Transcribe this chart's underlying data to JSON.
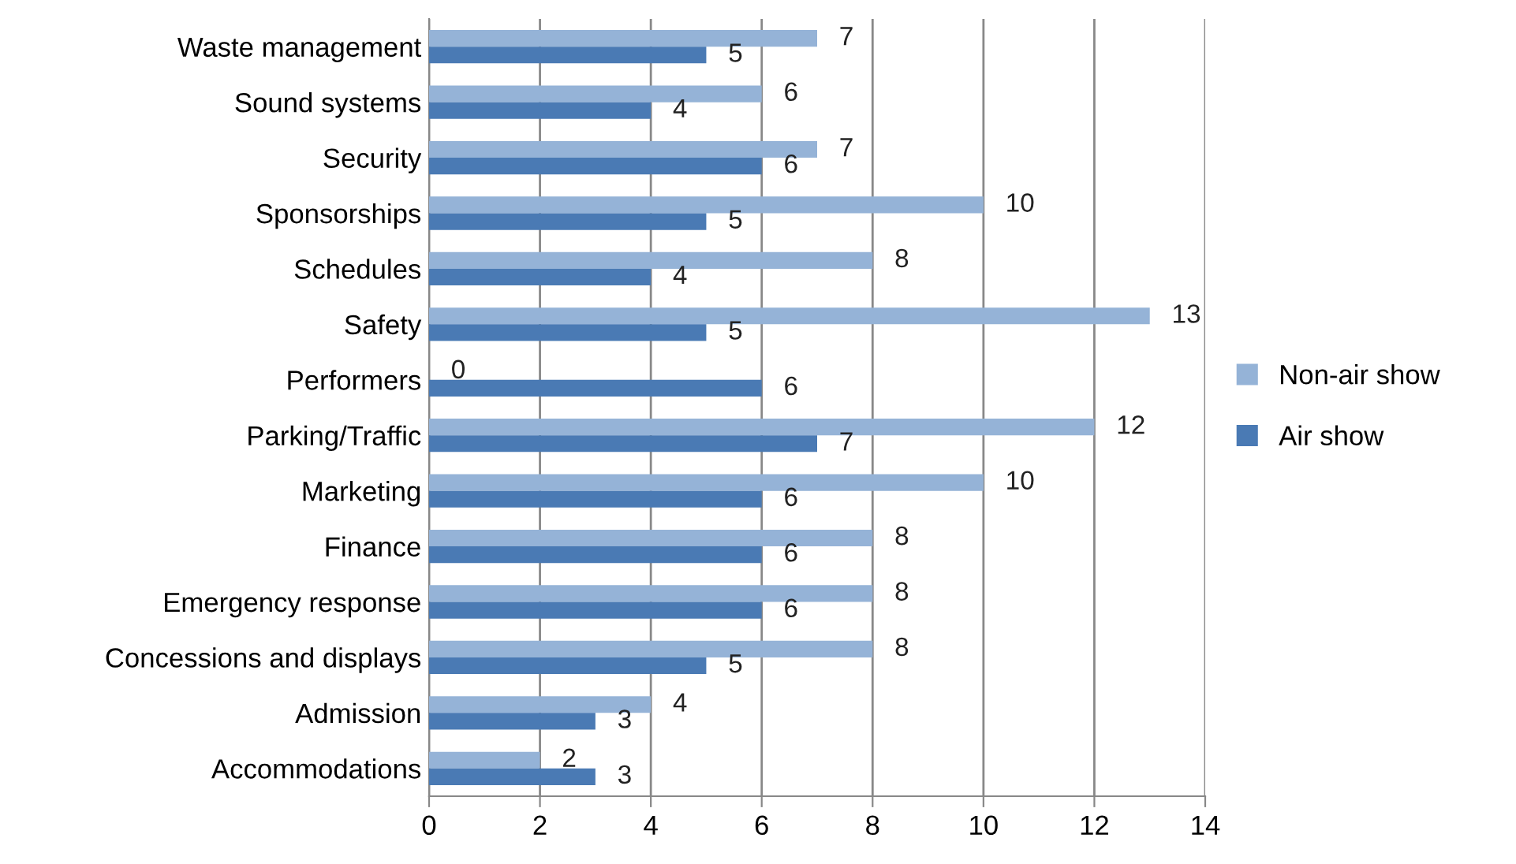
{
  "chart_data": {
    "type": "bar",
    "orientation": "horizontal",
    "categories": [
      "Waste management",
      "Sound systems",
      "Security",
      "Sponsorships",
      "Schedules",
      "Safety",
      "Performers",
      "Parking/Traffic",
      "Marketing",
      "Finance",
      "Emergency response",
      "Concessions and displays",
      "Admission",
      "Accommodations"
    ],
    "series": [
      {
        "name": "Non-air show",
        "color": "#95b3d7",
        "values": [
          7,
          6,
          7,
          10,
          8,
          13,
          0,
          12,
          10,
          8,
          8,
          8,
          4,
          2
        ]
      },
      {
        "name": "Air show",
        "color": "#4a7ab4",
        "values": [
          5,
          4,
          6,
          5,
          4,
          5,
          6,
          7,
          6,
          6,
          6,
          5,
          3,
          3
        ]
      }
    ],
    "xlim": [
      0,
      14
    ],
    "xticks": [
      0,
      2,
      4,
      6,
      8,
      10,
      12,
      14
    ],
    "grid": "x",
    "legend": "right",
    "data_labels": true
  }
}
